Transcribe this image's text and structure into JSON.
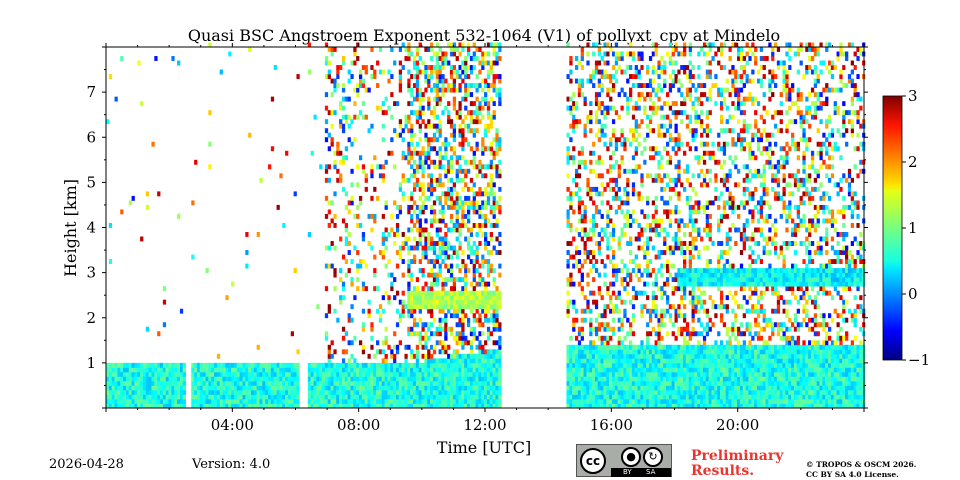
{
  "chart_data": {
    "type": "heatmap",
    "title": "Quasi BSC Angstroem Exponent 532-1064 (V1) of pollyxt_cpv at Mindelo",
    "xlabel": "Time [UTC]",
    "ylabel": "Height [km]",
    "xlim_hours": [
      0,
      24
    ],
    "ylim_km": [
      0,
      8
    ],
    "x_ticks": [
      {
        "hour": 4,
        "label": "04:00"
      },
      {
        "hour": 8,
        "label": "08:00"
      },
      {
        "hour": 12,
        "label": "12:00"
      },
      {
        "hour": 16,
        "label": "16:00"
      },
      {
        "hour": 20,
        "label": "20:00"
      }
    ],
    "y_ticks": [
      {
        "km": 1,
        "label": "1"
      },
      {
        "km": 2,
        "label": "2"
      },
      {
        "km": 3,
        "label": "3"
      },
      {
        "km": 4,
        "label": "4"
      },
      {
        "km": 5,
        "label": "5"
      },
      {
        "km": 6,
        "label": "6"
      },
      {
        "km": 7,
        "label": "7"
      }
    ],
    "colorbar": {
      "colormap": "jet",
      "vmin": -1,
      "vmax": 3,
      "ticks": [
        {
          "value": 3,
          "label": "3"
        },
        {
          "value": 2,
          "label": "2"
        },
        {
          "value": 1,
          "label": "1"
        },
        {
          "value": 0,
          "label": "0"
        },
        {
          "value": -1,
          "label": "−1"
        }
      ]
    },
    "data_gaps_hours": [
      [
        2.5,
        2.65
      ],
      [
        6.1,
        6.3
      ],
      [
        12.5,
        14.5
      ]
    ],
    "layers": [
      {
        "name": "boundary-layer",
        "start_h": 0.0,
        "end_h": 12.5,
        "top_km": 0.9,
        "value": 0.6
      },
      {
        "name": "boundary-layer-afternoon",
        "start_h": 14.5,
        "end_h": 24.0,
        "top_km": 1.4,
        "value": 0.6
      },
      {
        "name": "elevated-aerosol-morning",
        "start_h": 9.5,
        "end_h": 12.5,
        "bottom_km": 2.2,
        "top_km": 2.6,
        "value": 1.2
      },
      {
        "name": "elevated-aerosol-evening",
        "start_h": 18.0,
        "end_h": 24.0,
        "bottom_km": 2.7,
        "top_km": 3.1,
        "value": 0.5
      }
    ]
  },
  "footer": {
    "date": "2026-04-28",
    "version": "Version: 4.0",
    "preliminary": [
      "Preliminary",
      "Results."
    ],
    "copyright": [
      "© TROPOS & OSCM 2026.",
      "CC BY SA 4.0 License."
    ],
    "cc_by": "BY",
    "cc_sa": "SA",
    "cc_mark": "cc"
  }
}
